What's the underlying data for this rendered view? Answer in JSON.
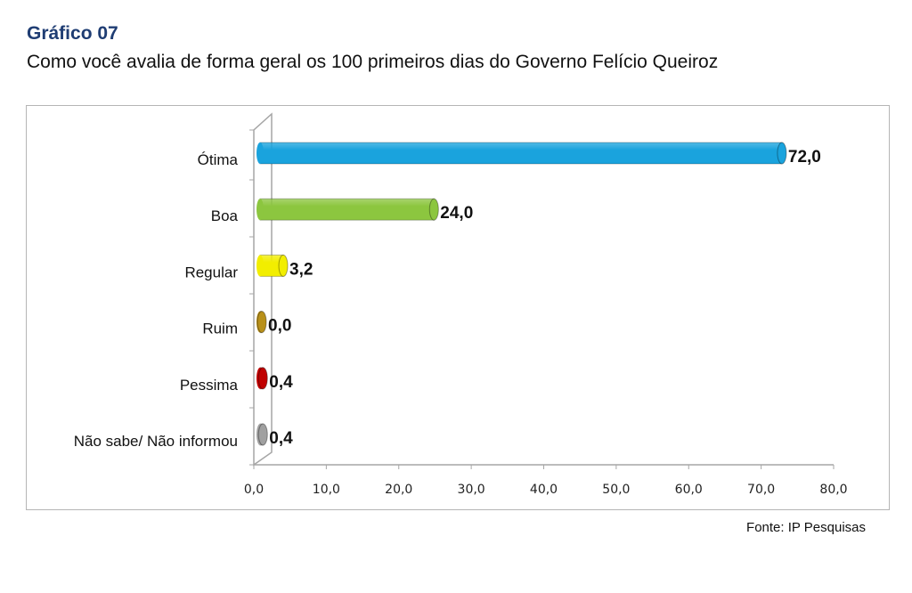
{
  "chart_data": {
    "type": "bar",
    "orientation": "horizontal",
    "title": "Gráfico 07",
    "subtitle": "Como você avalia de forma geral os 100 primeiros dias do Governo Felício Queiroz",
    "categories": [
      "Ótima",
      "Boa",
      "Regular",
      "Ruim",
      "Pessima",
      "Não sabe/ Não informou"
    ],
    "values": [
      72.0,
      24.0,
      3.2,
      0.0,
      0.4,
      0.4
    ],
    "value_labels": [
      "72,0",
      "24,0",
      "3,2",
      "0,0",
      "0,4",
      "0,4"
    ],
    "colors": [
      "#1aa3dd",
      "#8cc63f",
      "#f2ee00",
      "#b8901a",
      "#c00000",
      "#a0a0a0"
    ],
    "xlim": [
      0,
      80
    ],
    "xticks": [
      "0,0",
      "10,0",
      "20,0",
      "30,0",
      "40,0",
      "50,0",
      "60,0",
      "70,0",
      "80,0"
    ],
    "xlabel": "",
    "ylabel": "",
    "grid": false,
    "legend": "none",
    "source": "Fonte: IP Pesquisas"
  }
}
